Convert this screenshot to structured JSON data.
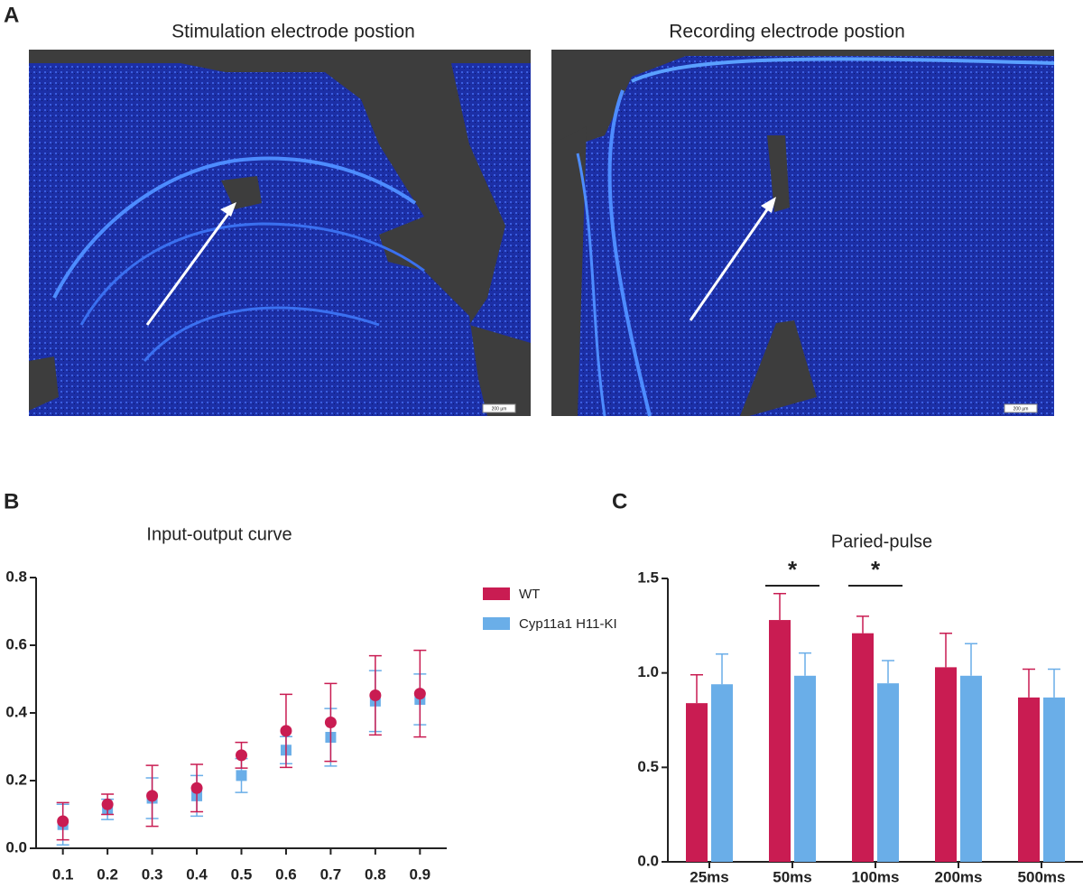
{
  "panel_labels": [
    "A",
    "B",
    "C"
  ],
  "images": [
    {
      "title": "Stimulation electrode postion",
      "scale_label": "200 µm"
    },
    {
      "title": "Recording electrode postion",
      "scale_label": "200 µm"
    }
  ],
  "chart_data": [
    {
      "type": "scatter",
      "title": "Input-output curve",
      "x": [
        0.1,
        0.2,
        0.3,
        0.4,
        0.5,
        0.6,
        0.7,
        0.8,
        0.9
      ],
      "series": [
        {
          "name": "WT",
          "color": "#c91c52",
          "values": [
            0.08,
            0.13,
            0.155,
            0.178,
            0.275,
            0.347,
            0.372,
            0.452,
            0.457
          ],
          "errors": [
            0.055,
            0.03,
            0.09,
            0.07,
            0.038,
            0.108,
            0.115,
            0.117,
            0.128
          ]
        },
        {
          "name": "Cyp11a1 H11-KI",
          "color": "#6aaee8",
          "values": [
            0.07,
            0.115,
            0.148,
            0.155,
            0.215,
            0.29,
            0.328,
            0.435,
            0.44
          ],
          "errors": [
            0.06,
            0.03,
            0.06,
            0.06,
            0.05,
            0.04,
            0.085,
            0.09,
            0.075
          ]
        }
      ],
      "xlim": [
        0.04,
        0.96
      ],
      "xticks": [
        0.1,
        0.2,
        0.3,
        0.4,
        0.5,
        0.6,
        0.7,
        0.8,
        0.9
      ],
      "ylim": [
        0,
        0.8
      ],
      "yticks": [
        {
          "value": 0,
          "label": "0.0"
        },
        0.2,
        0.4,
        0.6,
        0.8
      ]
    },
    {
      "type": "bar",
      "title": "Paried-pulse",
      "categories": [
        "25ms",
        "50ms",
        "100ms",
        "200ms",
        "500ms"
      ],
      "series": [
        {
          "color": "#c91c52",
          "values": [
            0.84,
            1.28,
            1.21,
            1.03,
            0.87
          ],
          "errors": [
            0.15,
            0.14,
            0.09,
            0.18,
            0.15
          ]
        },
        {
          "color": "#6aaee8",
          "values": [
            0.94,
            0.985,
            0.945,
            0.985,
            0.87
          ],
          "errors": [
            0.16,
            0.12,
            0.12,
            0.17,
            0.15
          ]
        }
      ],
      "ylim": [
        0,
        1.5
      ],
      "yticks": [
        {
          "value": 0,
          "label": "0.0"
        },
        0.5,
        {
          "value": 1,
          "label": "1.0"
        },
        1.5
      ],
      "annotations": [
        {
          "text": "*",
          "category": "50ms"
        },
        {
          "text": "*",
          "category": "100ms"
        }
      ]
    }
  ]
}
